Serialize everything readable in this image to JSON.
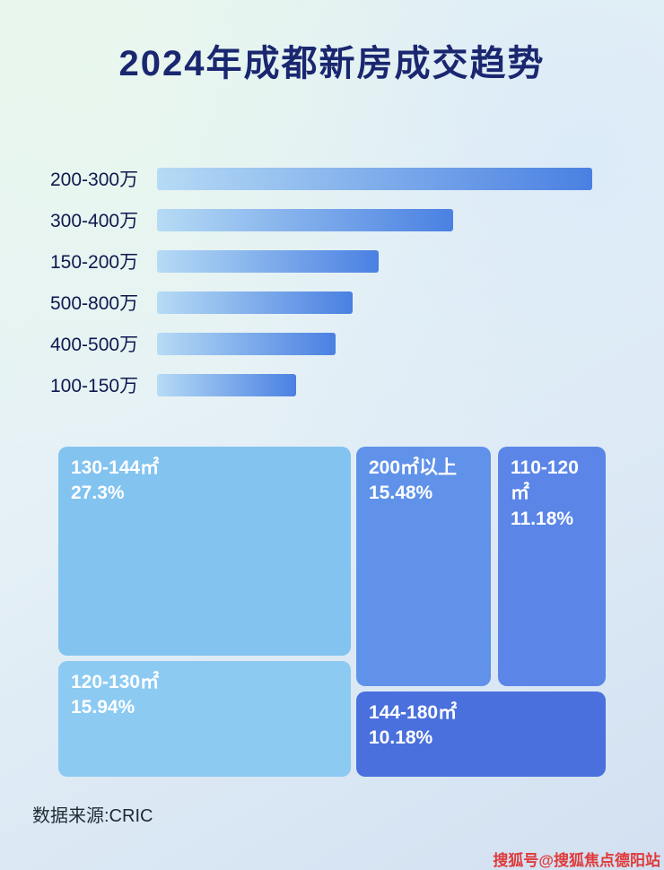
{
  "title": "2024年成都新房成交趋势",
  "source_label": "数据来源:CRIC",
  "watermark": "搜狐号@搜狐焦点德阳站",
  "colors": {
    "title_text": "#1a2770",
    "bar_label_text": "#10194f",
    "bar_gradient_start": "#b6dbf5",
    "bar_gradient_end": "#4a80e2",
    "treemap_text": "#ffffff",
    "watermark_red": "#e03a3a",
    "block_130_144": "#82c3f0",
    "block_120_130": "#8ccaf2",
    "block_200_plus": "#6092e9",
    "block_110_120": "#5b86e8",
    "block_144_180": "#4a70dd"
  },
  "chart_data": [
    {
      "type": "bar",
      "orientation": "horizontal",
      "title": "2024年成都新房成交趋势",
      "categories": [
        "200-300万",
        "300-400万",
        "150-200万",
        "500-800万",
        "400-500万",
        "100-150万"
      ],
      "values": [
        100,
        68,
        51,
        45,
        41,
        32
      ],
      "value_scale": "relative bar length, longest bar = 100 (no numeric axis shown in chart)",
      "grid": false,
      "legend": false
    },
    {
      "type": "treemap",
      "items": [
        {
          "label": "130-144㎡",
          "pct": "27.3%",
          "value": 27.3
        },
        {
          "label": "120-130㎡",
          "pct": "15.94%",
          "value": 15.94
        },
        {
          "label": "200㎡以上",
          "pct": "15.48%",
          "value": 15.48
        },
        {
          "label": "110-120㎡",
          "pct": "11.18%",
          "value": 11.18
        },
        {
          "label": "144-180㎡",
          "pct": "10.18%",
          "value": 10.18
        }
      ]
    }
  ]
}
